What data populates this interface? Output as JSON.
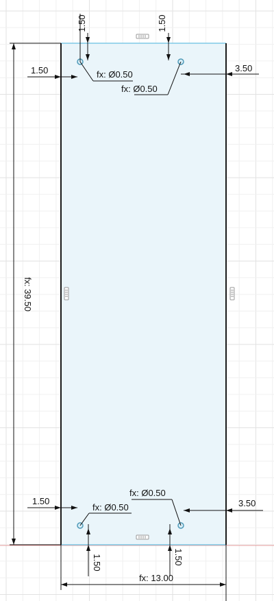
{
  "colors": {
    "background": "#ffffff",
    "grid_minor": "#f0f0f0",
    "grid_major": "#e2e2e2",
    "sketch_fill": "#eaf5fa",
    "sketch_edge_dark": "#1a1a1a",
    "sketch_edge_blue": "#7ec9e6",
    "dimension_line": "#111111",
    "axis_red": "#e39a9a",
    "hole": "#4f9ab8",
    "constraint_glyph": "#999999"
  },
  "dimensions": {
    "top_left_hole_vertical": "1.50",
    "top_right_hole_vertical": "1.50",
    "top_left_hole_horizontal": "1.50",
    "top_right_hole_horizontal": "3.50",
    "top_left_hole_diameter": "fx: Ø0.50",
    "top_right_hole_diameter": "fx: Ø0.50",
    "overall_height": "fx: 39.50",
    "bottom_left_hole_horizontal": "1.50",
    "bottom_right_hole_horizontal": "3.50",
    "bottom_right_hole_diameter": "fx: Ø0.50",
    "bottom_left_hole_diameter": "fx: Ø0.50",
    "bottom_left_hole_vertical": "1.50",
    "bottom_right_hole_vertical": "1.50",
    "overall_width": "fx: 13.00"
  },
  "icons": {
    "constraint": "horizontal-vertical-constraint-icon",
    "hole": "sketch-point-circle-icon"
  }
}
